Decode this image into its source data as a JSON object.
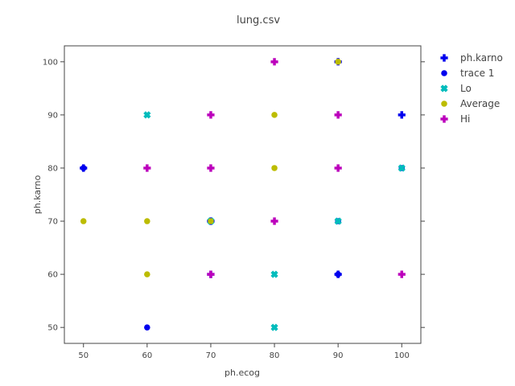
{
  "chart_data": {
    "type": "scatter",
    "title": "lung.csv",
    "xlabel": "ph.ecog",
    "ylabel": "ph.karno",
    "xlim": [
      47,
      103
    ],
    "ylim": [
      47,
      103
    ],
    "xticks": [
      50,
      60,
      70,
      80,
      90,
      100
    ],
    "yticks": [
      50,
      60,
      70,
      80,
      90,
      100
    ],
    "grid": false,
    "legend_position": "top-right",
    "series": [
      {
        "name": "ph.karno",
        "marker": "cross",
        "color": "#0000ee",
        "points": [
          [
            50,
            80
          ],
          [
            70,
            70
          ],
          [
            70,
            60
          ],
          [
            90,
            60
          ],
          [
            100,
            90
          ],
          [
            90,
            100
          ]
        ]
      },
      {
        "name": "trace 1",
        "marker": "circle",
        "color": "#0000ee",
        "points": [
          [
            50,
            80
          ],
          [
            60,
            50
          ],
          [
            90,
            60
          ],
          [
            90,
            70
          ],
          [
            100,
            80
          ]
        ]
      },
      {
        "name": "Lo",
        "marker": "x",
        "color": "#00bcbc",
        "points": [
          [
            60,
            90
          ],
          [
            80,
            60
          ],
          [
            80,
            50
          ],
          [
            90,
            70
          ],
          [
            100,
            80
          ],
          [
            70,
            70
          ]
        ]
      },
      {
        "name": "Average",
        "marker": "circle",
        "color": "#bcbc00",
        "points": [
          [
            50,
            70
          ],
          [
            60,
            70
          ],
          [
            60,
            60
          ],
          [
            70,
            70
          ],
          [
            80,
            90
          ],
          [
            80,
            80
          ],
          [
            90,
            100
          ]
        ]
      },
      {
        "name": "Hi",
        "marker": "cross",
        "color": "#bc00bc",
        "points": [
          [
            60,
            80
          ],
          [
            70,
            90
          ],
          [
            70,
            80
          ],
          [
            70,
            60
          ],
          [
            80,
            100
          ],
          [
            80,
            70
          ],
          [
            90,
            90
          ],
          [
            90,
            80
          ],
          [
            100,
            60
          ]
        ]
      }
    ]
  }
}
